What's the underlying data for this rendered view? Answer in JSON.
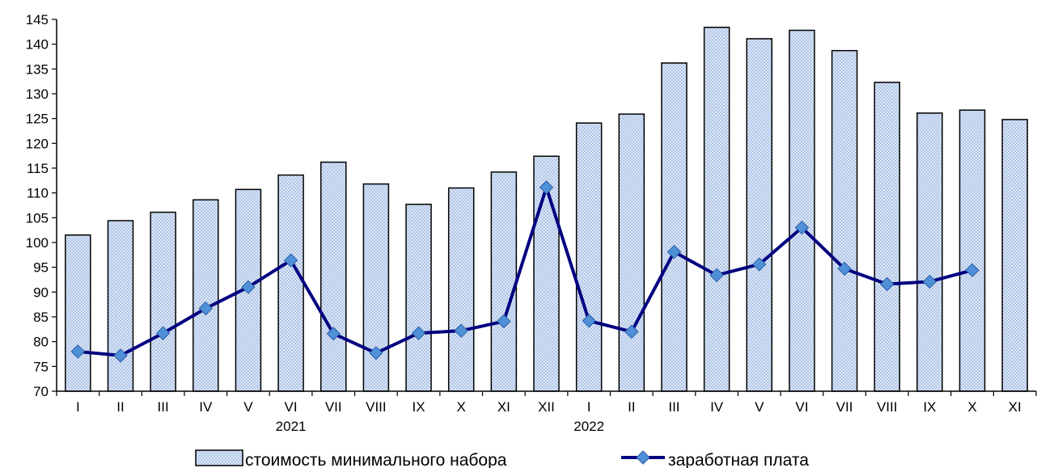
{
  "chart_data": {
    "type": "bar",
    "categories": [
      "I",
      "II",
      "III",
      "IV",
      "V",
      "VI",
      "VII",
      "VIII",
      "IX",
      "X",
      "XI",
      "XII",
      "I",
      "II",
      "III",
      "IV",
      "V",
      "VI",
      "VII",
      "VIII",
      "IX",
      "X",
      "XI"
    ],
    "year_labels": [
      {
        "label": "2021",
        "category_index": 5
      },
      {
        "label": "2022",
        "category_index": 12
      }
    ],
    "series": [
      {
        "name": "стоимость минимального набора",
        "kind": "bar",
        "values": [
          101.5,
          104.4,
          106.1,
          108.6,
          110.7,
          113.6,
          116.2,
          111.8,
          107.7,
          111.0,
          114.2,
          117.4,
          124.1,
          125.9,
          136.2,
          143.4,
          141.1,
          142.8,
          138.7,
          132.3,
          126.1,
          126.7,
          124.8
        ]
      },
      {
        "name": "заработная плата",
        "kind": "line",
        "values": [
          78.0,
          77.2,
          81.7,
          86.7,
          91.0,
          96.4,
          81.6,
          77.7,
          81.7,
          82.2,
          84.1,
          111.1,
          84.2,
          82.0,
          98.1,
          93.4,
          95.6,
          103.0,
          94.7,
          91.6,
          92.1,
          94.4,
          null
        ]
      }
    ],
    "y_ticks": [
      70,
      75,
      80,
      85,
      90,
      95,
      100,
      105,
      110,
      115,
      120,
      125,
      130,
      135,
      140,
      145
    ],
    "ylim": [
      70,
      145
    ],
    "grid": false,
    "legend_position": "bottom",
    "colors": {
      "bar_fill": "#dce6f6",
      "bar_dots": "#7c9fd6",
      "bar_stroke": "#000000",
      "line": "#000080",
      "marker": "#4f90d8"
    }
  }
}
